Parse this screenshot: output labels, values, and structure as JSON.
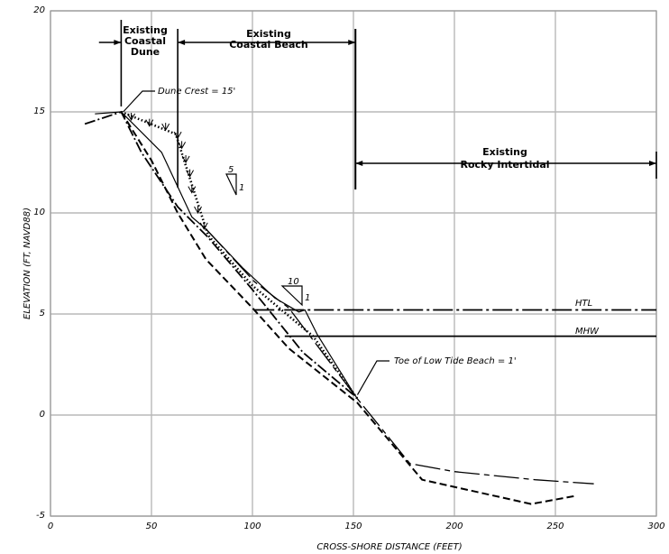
{
  "chart_data": {
    "type": "line",
    "title": "",
    "xlabel": "CROSS-SHORE DISTANCE (FEET)",
    "ylabel": "ELEVATION (FT, NAVD88)",
    "xlim": [
      0,
      300
    ],
    "ylim": [
      -5,
      20
    ],
    "grid": true,
    "x_ticks": [
      "0",
      "50",
      "100",
      "150",
      "200",
      "250",
      "300"
    ],
    "y_ticks": [
      "-5",
      "0",
      "5",
      "10",
      "15",
      "20"
    ],
    "zones": [
      {
        "label_line1": "Existing",
        "label_line2": "Coastal",
        "label_line3": "Dune",
        "x_start": 35,
        "x_end": 63
      },
      {
        "label_line1": "Existing",
        "label_line2": "Coastal Beach",
        "x_start": 63,
        "x_end": 151
      },
      {
        "label_line1": "Existing",
        "label_line2": "Rocky Intertidal",
        "x_start": 151,
        "x_end": 300
      }
    ],
    "water_levels": [
      {
        "name": "HTL",
        "y": 5.2,
        "x_start": 101,
        "x_end": 300
      },
      {
        "name": "MHW",
        "y": 3.9,
        "x_start": 116,
        "x_end": 300
      }
    ],
    "slopes": [
      {
        "run": "5",
        "rise": "1"
      },
      {
        "run": "10",
        "rise": "1"
      }
    ],
    "annotations": [
      {
        "text": "Dune Crest = 15'"
      },
      {
        "text": "Toe of Low Tide Beach = 1'"
      }
    ],
    "series": [
      {
        "style": "solid",
        "points": [
          [
            22,
            14.9
          ],
          [
            35,
            15
          ],
          [
            55,
            13
          ],
          [
            70,
            9.8
          ],
          [
            77,
            9.2
          ],
          [
            95,
            7.3
          ],
          [
            111,
            5.8
          ],
          [
            123,
            5.1
          ],
          [
            126,
            5.2
          ],
          [
            132,
            4
          ],
          [
            150,
            1.1
          ],
          [
            152,
            0.8
          ]
        ]
      },
      {
        "style": "long-dash",
        "points": [
          [
            77,
            9.2
          ],
          [
            101,
            6.6
          ],
          [
            118,
            5.3
          ],
          [
            152,
            0.8
          ],
          [
            178,
            -2.4
          ],
          [
            200,
            -2.8
          ],
          [
            240,
            -3.2
          ],
          [
            269,
            -3.4
          ]
        ]
      },
      {
        "style": "dash-dot",
        "points": [
          [
            17,
            14.4
          ],
          [
            35,
            15
          ],
          [
            45,
            13
          ],
          [
            63,
            10.3
          ],
          [
            78,
            8.8
          ],
          [
            100,
            6.2
          ],
          [
            125,
            3.1
          ],
          [
            150,
            1
          ]
        ]
      },
      {
        "style": "dashed",
        "points": [
          [
            35,
            15
          ],
          [
            50,
            12.6
          ],
          [
            63,
            10
          ],
          [
            77,
            7.7
          ],
          [
            100,
            5.3
          ],
          [
            118,
            3.3
          ],
          [
            152,
            0.6
          ],
          [
            184,
            -3.2
          ],
          [
            238,
            -4.4
          ],
          [
            260,
            -4
          ]
        ]
      },
      {
        "style": "dotted",
        "points": [
          [
            35,
            15
          ],
          [
            62,
            13.9
          ],
          [
            78,
            8.9
          ],
          [
            100,
            6.4
          ],
          [
            130,
            3.9
          ],
          [
            152,
            0.8
          ]
        ]
      }
    ]
  }
}
